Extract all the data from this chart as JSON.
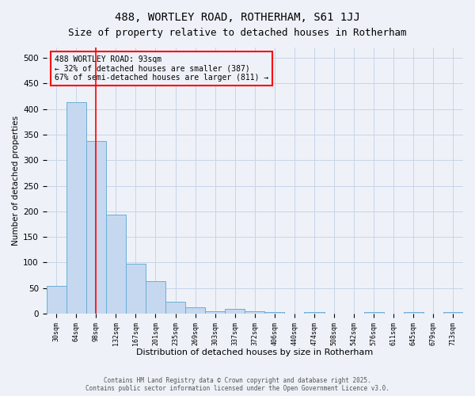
{
  "title1": "488, WORTLEY ROAD, ROTHERHAM, S61 1JJ",
  "title2": "Size of property relative to detached houses in Rotherham",
  "xlabel": "Distribution of detached houses by size in Rotherham",
  "ylabel": "Number of detached properties",
  "categories": [
    "30sqm",
    "64sqm",
    "98sqm",
    "132sqm",
    "167sqm",
    "201sqm",
    "235sqm",
    "269sqm",
    "303sqm",
    "337sqm",
    "372sqm",
    "406sqm",
    "440sqm",
    "474sqm",
    "508sqm",
    "542sqm",
    "576sqm",
    "611sqm",
    "645sqm",
    "679sqm",
    "713sqm"
  ],
  "values": [
    55,
    413,
    338,
    193,
    97,
    63,
    23,
    13,
    5,
    9,
    5,
    3,
    0,
    3,
    0,
    0,
    3,
    0,
    3,
    0,
    3
  ],
  "bar_color": "#c5d8f0",
  "bar_edge_color": "#6baed6",
  "grid_color": "#c8d4e8",
  "vline_x": 2.0,
  "vline_color": "red",
  "annotation_line1": "488 WORTLEY ROAD: 93sqm",
  "annotation_line2": "← 32% of detached houses are smaller (387)",
  "annotation_line3": "67% of semi-detached houses are larger (811) →",
  "annotation_box_color": "red",
  "footer_text": "Contains HM Land Registry data © Crown copyright and database right 2025.\nContains public sector information licensed under the Open Government Licence v3.0.",
  "ylim": [
    0,
    520
  ],
  "yticks": [
    0,
    50,
    100,
    150,
    200,
    250,
    300,
    350,
    400,
    450,
    500
  ],
  "bg_color": "#eef2f8",
  "title_fontsize": 10,
  "subtitle_fontsize": 9,
  "figsize": [
    6.0,
    5.0
  ],
  "dpi": 100
}
